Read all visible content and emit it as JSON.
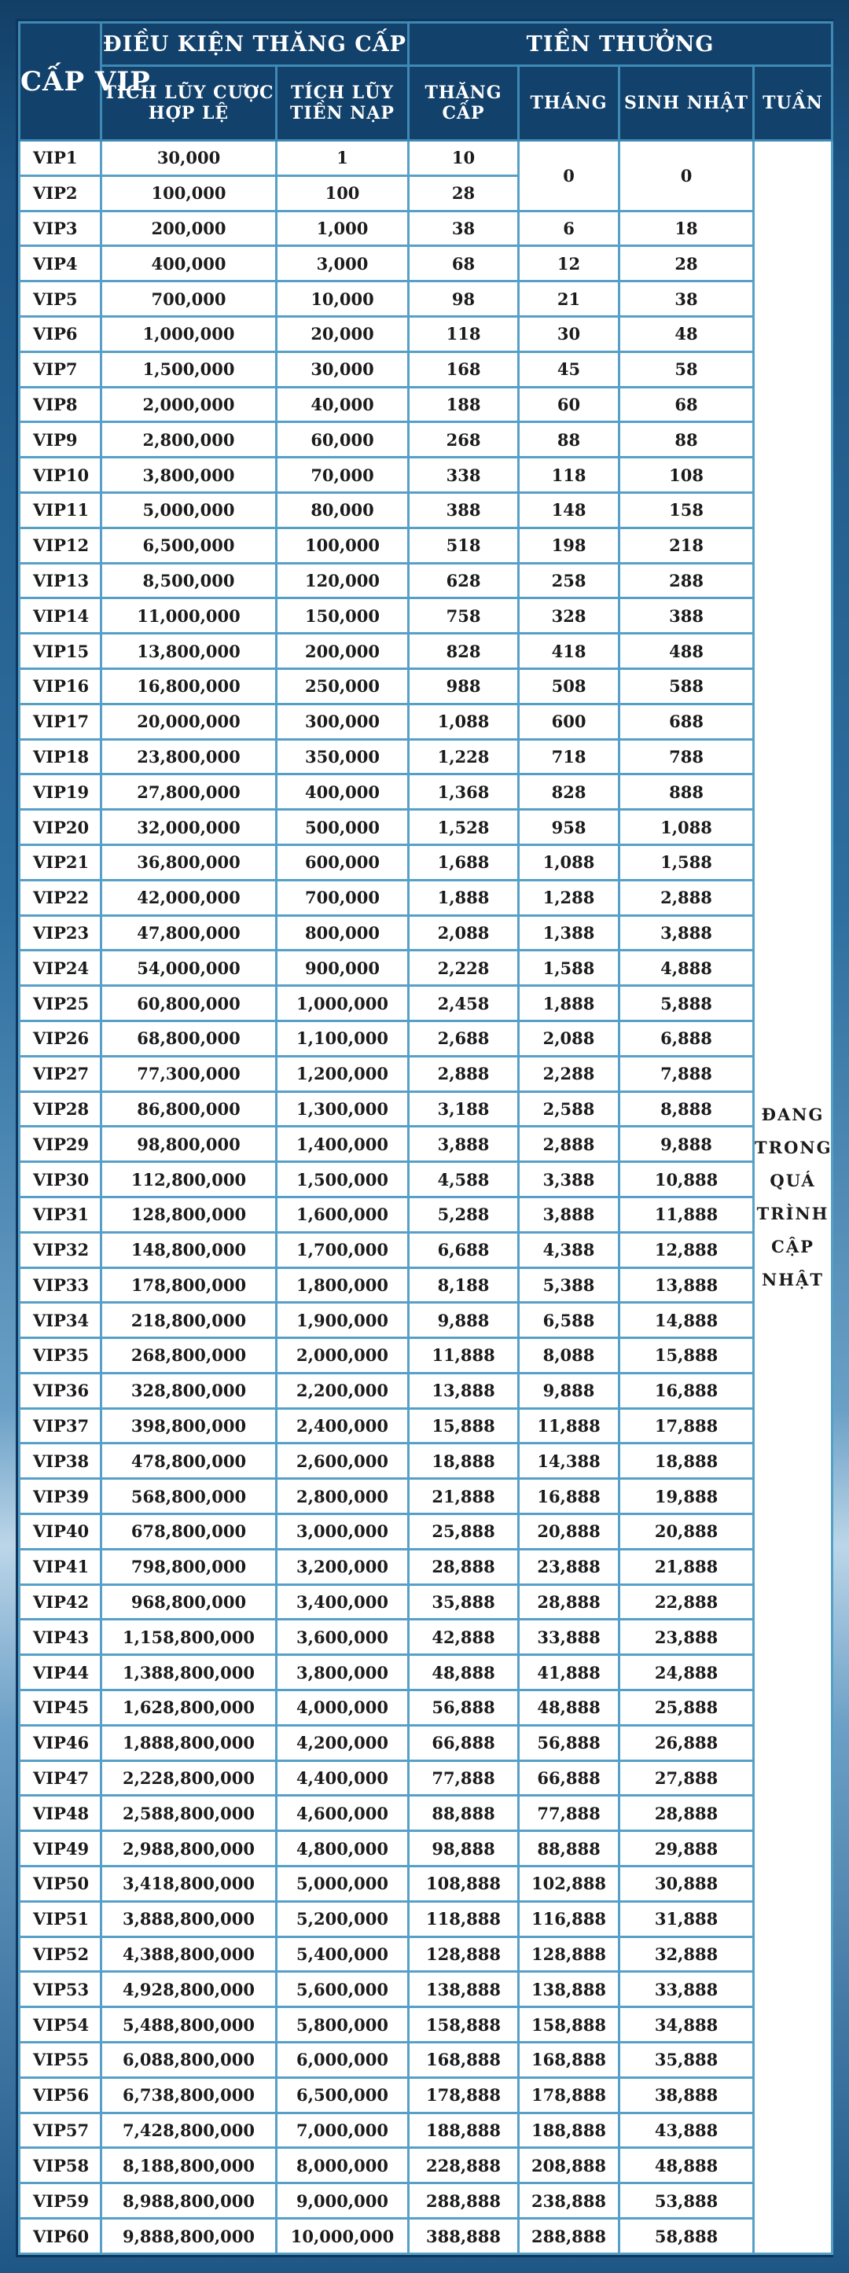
{
  "header": {
    "vip": [
      "CẤP",
      "VIP"
    ],
    "conditions": "ĐIỀU KIỆN THĂNG CẤP",
    "rewards": "TIỀN THƯỞNG",
    "bet": [
      "TÍCH LŨY CƯỢC",
      "HỢP LỆ"
    ],
    "deposit": [
      "TÍCH LŨY",
      "TIỀN NẠP"
    ],
    "promotion": [
      "THĂNG",
      "CẤP"
    ],
    "month": "THÁNG",
    "birthday": "SINH NHẬT",
    "week": "TUẦN"
  },
  "week_note": [
    "ĐANG",
    "TRONG",
    "QUÁ",
    "TRÌNH",
    "CẬP",
    "NHẬT"
  ],
  "merged_month_birthday": {
    "month": "0",
    "birthday": "0"
  },
  "rows": [
    [
      "VIP1",
      "30,000",
      "1",
      "10"
    ],
    [
      "VIP2",
      "100,000",
      "100",
      "28"
    ],
    [
      "VIP3",
      "200,000",
      "1,000",
      "38",
      "6",
      "18"
    ],
    [
      "VIP4",
      "400,000",
      "3,000",
      "68",
      "12",
      "28"
    ],
    [
      "VIP5",
      "700,000",
      "10,000",
      "98",
      "21",
      "38"
    ],
    [
      "VIP6",
      "1,000,000",
      "20,000",
      "118",
      "30",
      "48"
    ],
    [
      "VIP7",
      "1,500,000",
      "30,000",
      "168",
      "45",
      "58"
    ],
    [
      "VIP8",
      "2,000,000",
      "40,000",
      "188",
      "60",
      "68"
    ],
    [
      "VIP9",
      "2,800,000",
      "60,000",
      "268",
      "88",
      "88"
    ],
    [
      "VIP10",
      "3,800,000",
      "70,000",
      "338",
      "118",
      "108"
    ],
    [
      "VIP11",
      "5,000,000",
      "80,000",
      "388",
      "148",
      "158"
    ],
    [
      "VIP12",
      "6,500,000",
      "100,000",
      "518",
      "198",
      "218"
    ],
    [
      "VIP13",
      "8,500,000",
      "120,000",
      "628",
      "258",
      "288"
    ],
    [
      "VIP14",
      "11,000,000",
      "150,000",
      "758",
      "328",
      "388"
    ],
    [
      "VIP15",
      "13,800,000",
      "200,000",
      "828",
      "418",
      "488"
    ],
    [
      "VIP16",
      "16,800,000",
      "250,000",
      "988",
      "508",
      "588"
    ],
    [
      "VIP17",
      "20,000,000",
      "300,000",
      "1,088",
      "600",
      "688"
    ],
    [
      "VIP18",
      "23,800,000",
      "350,000",
      "1,228",
      "718",
      "788"
    ],
    [
      "VIP19",
      "27,800,000",
      "400,000",
      "1,368",
      "828",
      "888"
    ],
    [
      "VIP20",
      "32,000,000",
      "500,000",
      "1,528",
      "958",
      "1,088"
    ],
    [
      "VIP21",
      "36,800,000",
      "600,000",
      "1,688",
      "1,088",
      "1,588"
    ],
    [
      "VIP22",
      "42,000,000",
      "700,000",
      "1,888",
      "1,288",
      "2,888"
    ],
    [
      "VIP23",
      "47,800,000",
      "800,000",
      "2,088",
      "1,388",
      "3,888"
    ],
    [
      "VIP24",
      "54,000,000",
      "900,000",
      "2,228",
      "1,588",
      "4,888"
    ],
    [
      "VIP25",
      "60,800,000",
      "1,000,000",
      "2,458",
      "1,888",
      "5,888"
    ],
    [
      "VIP26",
      "68,800,000",
      "1,100,000",
      "2,688",
      "2,088",
      "6,888"
    ],
    [
      "VIP27",
      "77,300,000",
      "1,200,000",
      "2,888",
      "2,288",
      "7,888"
    ],
    [
      "VIP28",
      "86,800,000",
      "1,300,000",
      "3,188",
      "2,588",
      "8,888"
    ],
    [
      "VIP29",
      "98,800,000",
      "1,400,000",
      "3,888",
      "2,888",
      "9,888"
    ],
    [
      "VIP30",
      "112,800,000",
      "1,500,000",
      "4,588",
      "3,388",
      "10,888"
    ],
    [
      "VIP31",
      "128,800,000",
      "1,600,000",
      "5,288",
      "3,888",
      "11,888"
    ],
    [
      "VIP32",
      "148,800,000",
      "1,700,000",
      "6,688",
      "4,388",
      "12,888"
    ],
    [
      "VIP33",
      "178,800,000",
      "1,800,000",
      "8,188",
      "5,388",
      "13,888"
    ],
    [
      "VIP34",
      "218,800,000",
      "1,900,000",
      "9,888",
      "6,588",
      "14,888"
    ],
    [
      "VIP35",
      "268,800,000",
      "2,000,000",
      "11,888",
      "8,088",
      "15,888"
    ],
    [
      "VIP36",
      "328,800,000",
      "2,200,000",
      "13,888",
      "9,888",
      "16,888"
    ],
    [
      "VIP37",
      "398,800,000",
      "2,400,000",
      "15,888",
      "11,888",
      "17,888"
    ],
    [
      "VIP38",
      "478,800,000",
      "2,600,000",
      "18,888",
      "14,388",
      "18,888"
    ],
    [
      "VIP39",
      "568,800,000",
      "2,800,000",
      "21,888",
      "16,888",
      "19,888"
    ],
    [
      "VIP40",
      "678,800,000",
      "3,000,000",
      "25,888",
      "20,888",
      "20,888"
    ],
    [
      "VIP41",
      "798,800,000",
      "3,200,000",
      "28,888",
      "23,888",
      "21,888"
    ],
    [
      "VIP42",
      "968,800,000",
      "3,400,000",
      "35,888",
      "28,888",
      "22,888"
    ],
    [
      "VIP43",
      "1,158,800,000",
      "3,600,000",
      "42,888",
      "33,888",
      "23,888"
    ],
    [
      "VIP44",
      "1,388,800,000",
      "3,800,000",
      "48,888",
      "41,888",
      "24,888"
    ],
    [
      "VIP45",
      "1,628,800,000",
      "4,000,000",
      "56,888",
      "48,888",
      "25,888"
    ],
    [
      "VIP46",
      "1,888,800,000",
      "4,200,000",
      "66,888",
      "56,888",
      "26,888"
    ],
    [
      "VIP47",
      "2,228,800,000",
      "4,400,000",
      "77,888",
      "66,888",
      "27,888"
    ],
    [
      "VIP48",
      "2,588,800,000",
      "4,600,000",
      "88,888",
      "77,888",
      "28,888"
    ],
    [
      "VIP49",
      "2,988,800,000",
      "4,800,000",
      "98,888",
      "88,888",
      "29,888"
    ],
    [
      "VIP50",
      "3,418,800,000",
      "5,000,000",
      "108,888",
      "102,888",
      "30,888"
    ],
    [
      "VIP51",
      "3,888,800,000",
      "5,200,000",
      "118,888",
      "116,888",
      "31,888"
    ],
    [
      "VIP52",
      "4,388,800,000",
      "5,400,000",
      "128,888",
      "128,888",
      "32,888"
    ],
    [
      "VIP53",
      "4,928,800,000",
      "5,600,000",
      "138,888",
      "138,888",
      "33,888"
    ],
    [
      "VIP54",
      "5,488,800,000",
      "5,800,000",
      "158,888",
      "158,888",
      "34,888"
    ],
    [
      "VIP55",
      "6,088,800,000",
      "6,000,000",
      "168,888",
      "168,888",
      "35,888"
    ],
    [
      "VIP56",
      "6,738,800,000",
      "6,500,000",
      "178,888",
      "178,888",
      "38,888"
    ],
    [
      "VIP57",
      "7,428,800,000",
      "7,000,000",
      "188,888",
      "188,888",
      "43,888"
    ],
    [
      "VIP58",
      "8,188,800,000",
      "8,000,000",
      "228,888",
      "208,888",
      "48,888"
    ],
    [
      "VIP59",
      "8,988,800,000",
      "9,000,000",
      "288,888",
      "238,888",
      "53,888"
    ],
    [
      "VIP60",
      "9,888,800,000",
      "10,000,000",
      "388,888",
      "288,888",
      "58,888"
    ]
  ]
}
